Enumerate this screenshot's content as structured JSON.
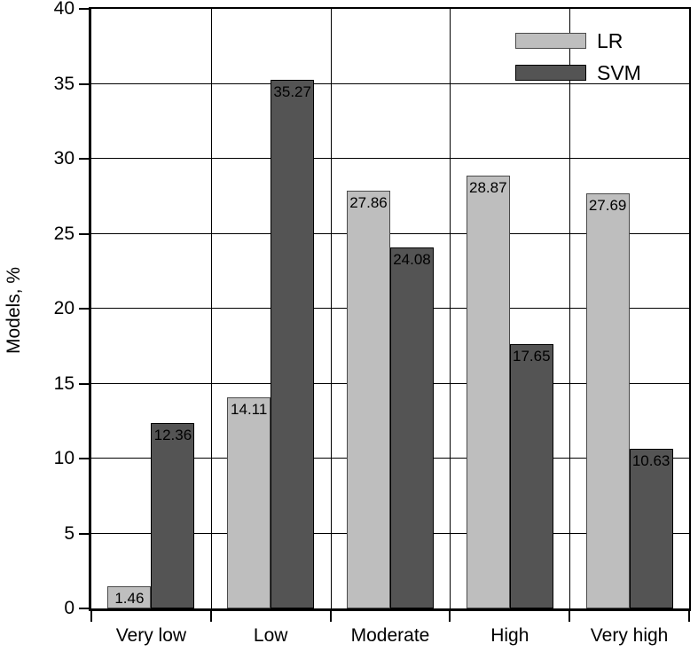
{
  "chart_data": {
    "type": "bar",
    "title": "",
    "categories": [
      "Very low",
      "Low",
      "Moderate",
      "High",
      "Very high"
    ],
    "series": [
      {
        "name": "LR",
        "color": "#bebebe",
        "border_color": "#4a4a4a",
        "values": [
          1.46,
          14.11,
          27.86,
          28.87,
          27.69
        ],
        "labels": [
          "1.46",
          "14.11",
          "27.86",
          "28.87",
          "27.69"
        ]
      },
      {
        "name": "SVM",
        "color": "#545454",
        "border_color": "#000000",
        "values": [
          12.36,
          35.27,
          24.08,
          17.65,
          10.63
        ],
        "labels": [
          "12.36",
          "35.27",
          "24.08",
          "17.65",
          "10.63"
        ]
      }
    ],
    "xlabel": "",
    "ylabel": "Models, %",
    "ylim": [
      0,
      40
    ],
    "yticks": [
      0,
      5,
      10,
      15,
      20,
      25,
      30,
      35,
      40
    ],
    "grid": true,
    "gridline_color": "#000000",
    "legend_position": "top-right",
    "value_label_color": "#000000"
  }
}
